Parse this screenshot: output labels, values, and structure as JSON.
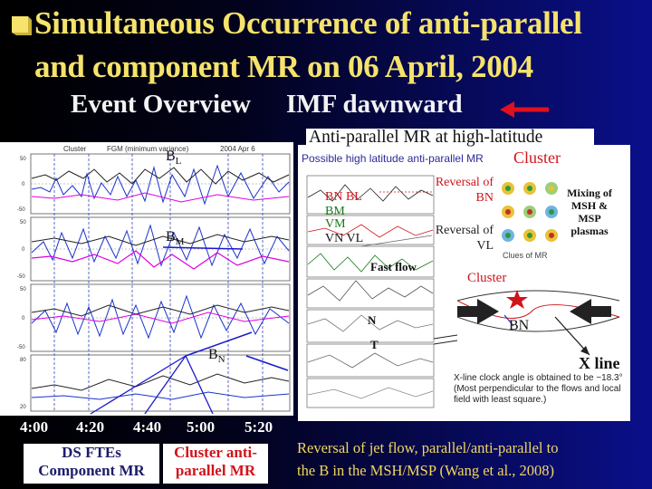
{
  "slide": {
    "title_line1": "Simultaneous Occurrence of anti-parallel",
    "title_line2": "and component MR on 06 April, 2004",
    "subtitle_left": "Event Overview",
    "subtitle_right": "IMF dawnward",
    "right_heading": "Anti-parallel MR at high-latitude"
  },
  "colors": {
    "title": "#f5e36b",
    "arrow": "#e0101c",
    "accent_red": "#d0141c",
    "bottom_text": "#f0d860"
  },
  "left_panel": {
    "header_left": "Cluster",
    "header_mid": "FGM (minimum variance)",
    "header_right": "2004 Apr 6",
    "label_bl": "B",
    "label_bl_sub": "L",
    "label_bm": "B",
    "label_bm_sub": "M",
    "label_bn": "B",
    "label_bn_sub": "N",
    "times": [
      "4:00",
      "4:20",
      "4:40",
      "5:00",
      "5:20"
    ],
    "ds_ftes_line1": "DS FTEs",
    "ds_ftes_line2": "Component MR",
    "cluster_anti_line1": "Cluster anti-",
    "cluster_anti_line2": "parallel MR"
  },
  "right_panel": {
    "plot_title": "Possible high latitude anti-parallel MR",
    "cluster_label": "Cluster",
    "legend_bn_bl": "BN BL",
    "legend_bm": "BM",
    "legend_vm": "VM",
    "legend_vn_vl": "VN VL",
    "reversal_bn": "Reversal of BN",
    "reversal_vl": "Reversal of VL",
    "mixing": "Mixing of MSH & MSP plasmas",
    "fast_flow": "Fast flow",
    "clues": "Clues of MR",
    "cluster_orbit": "Cluster",
    "n_label": "N",
    "t_label": "T",
    "bn_label": "BN",
    "x_line": "X line",
    "clock_angle_text": "X-line clock angle is obtained to be ~18.3°",
    "most_perp_text": "(Most perpendicular to the flows and local field with least square.)"
  },
  "bottom": {
    "text_line1": "Reversal of jet flow, parallel/anti-parallel  to",
    "text_line2": "the B  in the MSH/MSP   (Wang et al., 2008)"
  }
}
